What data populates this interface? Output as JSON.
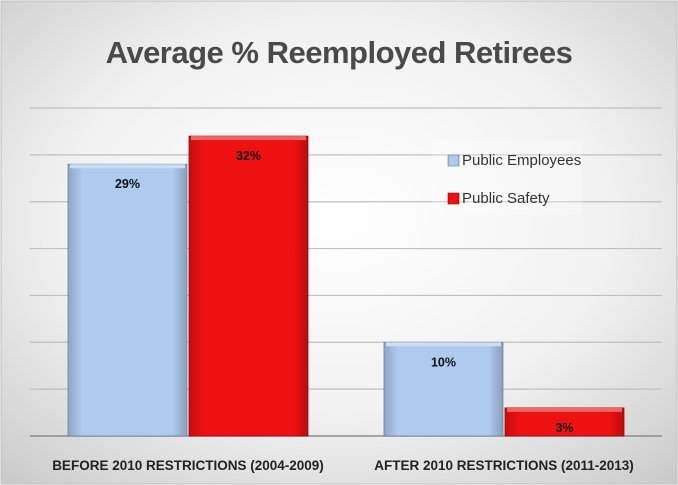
{
  "chart_data": {
    "type": "bar",
    "title": "Average % Reemployed Retirees",
    "categories": [
      "BEFORE 2010 RESTRICTIONS (2004-2009)",
      "AFTER 2010 RESTRICTIONS (2011-2013)"
    ],
    "series": [
      {
        "name": "Public Employees",
        "values": [
          29,
          10
        ],
        "labels": [
          "29%",
          "10%"
        ],
        "color": "#aecbef"
      },
      {
        "name": "Public Safety",
        "values": [
          32,
          3
        ],
        "labels": [
          "32%",
          "3%"
        ],
        "color": "#ee1111"
      }
    ],
    "ylim": [
      0,
      35
    ],
    "grid": true,
    "legend": "top-right"
  }
}
